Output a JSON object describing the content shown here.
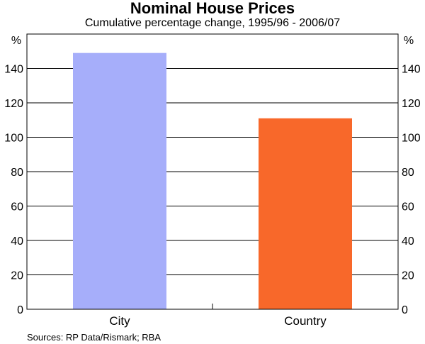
{
  "title": "Nominal House Prices",
  "subtitle": "Cumulative percentage change, 1995/96 - 2006/07",
  "source": "Sources: RP Data/Rismark; RBA",
  "chart_data": {
    "type": "bar",
    "title": "Nominal House Prices",
    "subtitle": "Cumulative percentage change, 1995/96 - 2006/07",
    "categories": [
      "City",
      "Country"
    ],
    "values": [
      149,
      111
    ],
    "colors": [
      "#a6aefa",
      "#f8682a"
    ],
    "ylabel_left": "%",
    "ylabel_right": "%",
    "ylim": [
      0,
      160
    ],
    "yticks": [
      0,
      20,
      40,
      60,
      80,
      100,
      120,
      140
    ],
    "grid": true,
    "legend": "none"
  }
}
